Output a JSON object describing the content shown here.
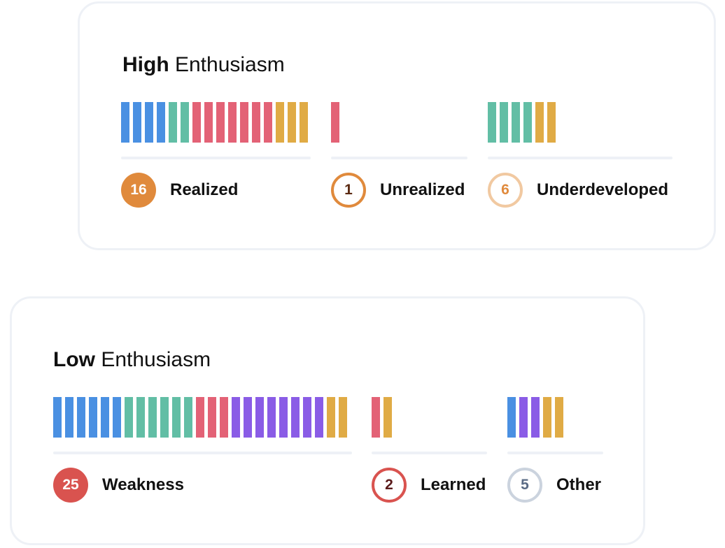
{
  "colors": {
    "blue": "#4a90e2",
    "teal": "#62bea5",
    "red": "#e36276",
    "purple": "#8a5ce6",
    "gold": "#e0ab45"
  },
  "high": {
    "title_bold": "High",
    "title_rest": " Enthusiasm",
    "groups": [
      {
        "count": "16",
        "label": "Realized",
        "badge_style": "filled",
        "badge_color": "#e08a3c",
        "badge_text_color": "#ffffff",
        "bars": [
          "blue",
          "blue",
          "blue",
          "blue",
          "teal",
          "teal",
          "red",
          "red",
          "red",
          "red",
          "red",
          "red",
          "red",
          "gold",
          "gold",
          "gold"
        ]
      },
      {
        "count": "1",
        "label": "Unrealized",
        "badge_style": "ring",
        "badge_color": "#e08a3c",
        "badge_text_color": "#5b2a12",
        "bars": [
          "red"
        ]
      },
      {
        "count": "6",
        "label": "Underdeveloped",
        "badge_style": "ring",
        "badge_color": "#f1c9a1",
        "badge_text_color": "#e08a3c",
        "bars": [
          "teal",
          "teal",
          "teal",
          "teal",
          "gold",
          "gold"
        ]
      }
    ]
  },
  "low": {
    "title_bold": "Low",
    "title_rest": " Enthusiasm",
    "groups": [
      {
        "count": "25",
        "label": "Weakness",
        "badge_style": "filled",
        "badge_color": "#d9534f",
        "badge_text_color": "#ffffff",
        "bars": [
          "blue",
          "blue",
          "blue",
          "blue",
          "blue",
          "blue",
          "teal",
          "teal",
          "teal",
          "teal",
          "teal",
          "teal",
          "red",
          "red",
          "red",
          "purple",
          "purple",
          "purple",
          "purple",
          "purple",
          "purple",
          "purple",
          "purple",
          "gold",
          "gold"
        ]
      },
      {
        "count": "2",
        "label": "Learned",
        "badge_style": "ring",
        "badge_color": "#d9534f",
        "badge_text_color": "#5a1a1a",
        "bars": [
          "red",
          "gold"
        ]
      },
      {
        "count": "5",
        "label": "Other",
        "badge_style": "ring",
        "badge_color": "#cbd3de",
        "badge_text_color": "#5a6b85",
        "bars": [
          "blue",
          "purple",
          "purple",
          "gold",
          "gold"
        ]
      }
    ]
  }
}
